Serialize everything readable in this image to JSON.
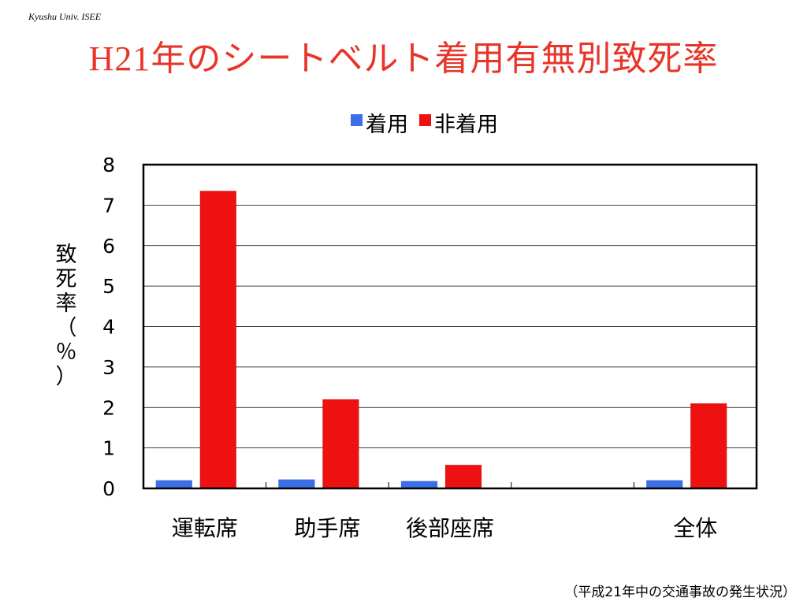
{
  "header": {
    "org": "Kyushu Univ. ISEE"
  },
  "title": {
    "prefix": "H21",
    "rest": "年のシートベルト着用有無別致死率"
  },
  "footnote": "（平成21年中の交通事故の発生状況）",
  "colors": {
    "accent_title": "#e8352a",
    "series_worn": "#3a6fe8",
    "series_unworn": "#ee1111"
  },
  "chart_data": {
    "type": "bar",
    "title": "",
    "categories": [
      "運転席",
      "助手席",
      "後部座席",
      "",
      "全体"
    ],
    "series": [
      {
        "name": "着用",
        "color": "#3a6fe8",
        "values": [
          0.2,
          0.22,
          0.18,
          null,
          0.2
        ]
      },
      {
        "name": "非着用",
        "color": "#ee1111",
        "values": [
          7.35,
          2.2,
          0.58,
          null,
          2.1
        ]
      }
    ],
    "xlabel": "",
    "ylabel": "致死率（％）",
    "ylim": [
      0,
      8
    ],
    "yticks": [
      0,
      1,
      2,
      3,
      4,
      5,
      6,
      7,
      8
    ],
    "grid": true,
    "legend": "top"
  }
}
